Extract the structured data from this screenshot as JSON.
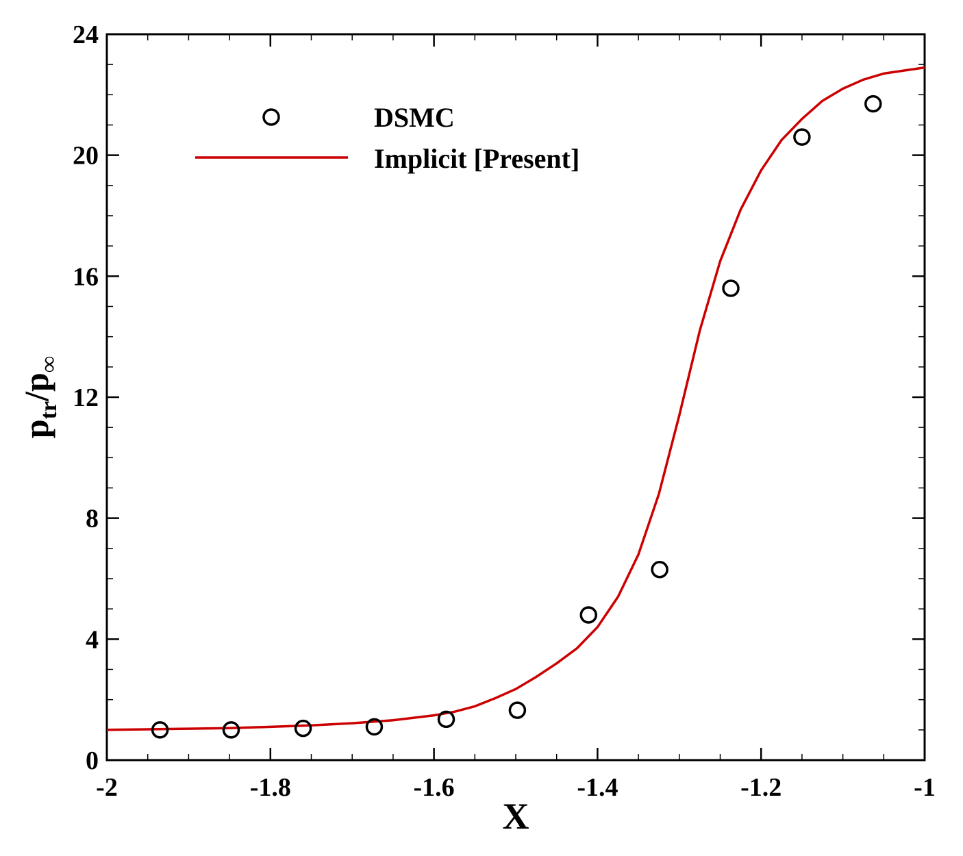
{
  "chart_data": {
    "type": "line",
    "xlabel": "X",
    "ylabel": {
      "main": "p",
      "sub": "tr",
      "slash": "/",
      "main2": "p",
      "sub2": "∞"
    },
    "xlim": [
      -2,
      -1
    ],
    "ylim": [
      0,
      24
    ],
    "x_ticks": [
      -2,
      -1.8,
      -1.6,
      -1.4,
      -1.2,
      -1
    ],
    "x_tick_labels": [
      "-2",
      "-1.8",
      "-1.6",
      "-1.4",
      "-1.2",
      "-1"
    ],
    "y_ticks": [
      0,
      4,
      8,
      12,
      16,
      20,
      24
    ],
    "y_tick_labels": [
      "0",
      "4",
      "8",
      "12",
      "16",
      "20",
      "24"
    ],
    "grid": false,
    "legend_position": "top-left",
    "series": [
      {
        "name": "DSMC",
        "kind": "markers",
        "marker": "open-circle",
        "color": "#000000",
        "x": [
          -1.935,
          -1.848,
          -1.76,
          -1.673,
          -1.585,
          -1.498,
          -1.411,
          -1.324,
          -1.237,
          -1.15,
          -1.063
        ],
        "y": [
          1.0,
          1.0,
          1.05,
          1.1,
          1.35,
          1.65,
          4.8,
          6.3,
          15.6,
          20.6,
          21.7
        ]
      },
      {
        "name": "Implicit [Present]",
        "kind": "line",
        "color": "#cc0000",
        "x": [
          -2.0,
          -1.95,
          -1.9,
          -1.85,
          -1.8,
          -1.75,
          -1.7,
          -1.65,
          -1.6,
          -1.575,
          -1.55,
          -1.525,
          -1.5,
          -1.475,
          -1.45,
          -1.425,
          -1.4,
          -1.375,
          -1.35,
          -1.325,
          -1.3,
          -1.275,
          -1.25,
          -1.225,
          -1.2,
          -1.175,
          -1.15,
          -1.125,
          -1.1,
          -1.075,
          -1.05,
          -1.025,
          -1.0
        ],
        "y": [
          1.0,
          1.02,
          1.04,
          1.06,
          1.1,
          1.15,
          1.22,
          1.32,
          1.48,
          1.6,
          1.78,
          2.05,
          2.35,
          2.75,
          3.2,
          3.7,
          4.4,
          5.4,
          6.8,
          8.8,
          11.4,
          14.2,
          16.5,
          18.2,
          19.5,
          20.5,
          21.2,
          21.8,
          22.2,
          22.5,
          22.7,
          22.8,
          22.9
        ]
      }
    ]
  }
}
